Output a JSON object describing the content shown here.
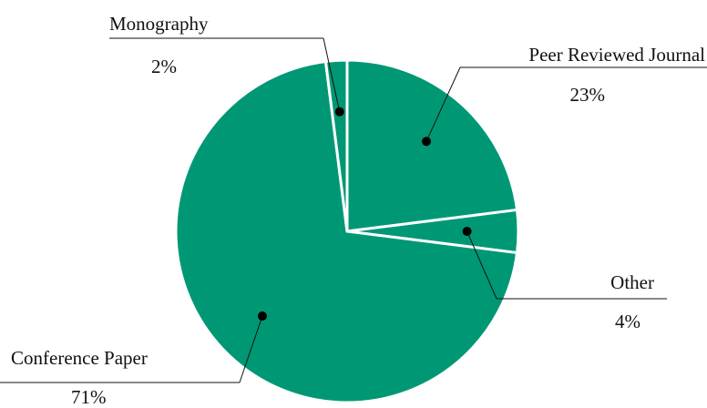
{
  "chart_data": {
    "type": "pie",
    "categories": [
      "Peer Reviewed Journal",
      "Other",
      "Conference Paper",
      "Monography"
    ],
    "values": [
      23,
      4,
      71,
      2
    ],
    "value_labels": [
      "23%",
      "4%",
      "71%",
      "2%"
    ],
    "color": "#009874"
  }
}
